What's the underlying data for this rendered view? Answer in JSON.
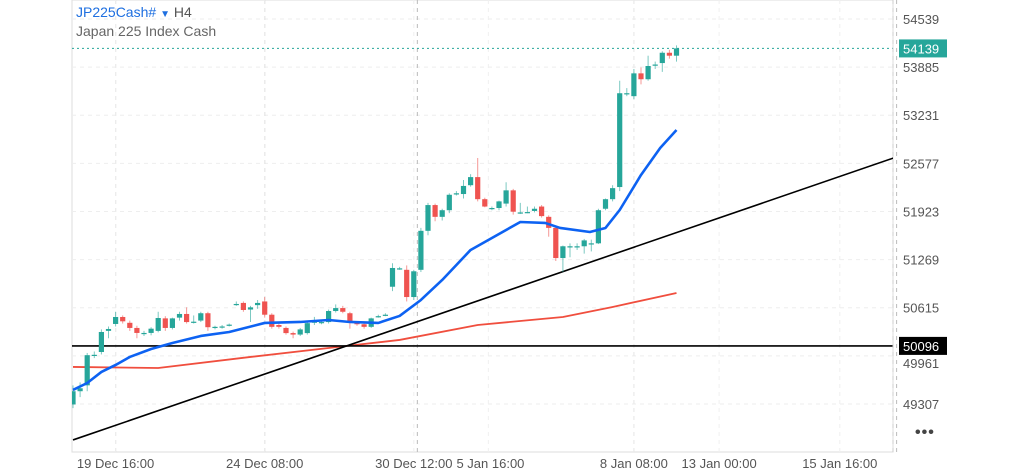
{
  "header": {
    "symbol": "JP225Cash#",
    "dropdown_icon": "caret-down-icon",
    "timeframe": "H4",
    "description": "Japan 225 Index Cash"
  },
  "more_button": "•••",
  "colors": {
    "up": "#26a69a",
    "down": "#ef5350",
    "ma_fast": "#0d62f2",
    "ma_slow": "#f04e3e",
    "trendline": "#000000",
    "last_price": "#26a69a"
  },
  "chart_data": {
    "type": "candlestick",
    "title": "",
    "ylim": [
      48654,
      54797
    ],
    "y_ticks": [
      54539,
      53885,
      53231,
      52577,
      51923,
      51269,
      50615,
      49961,
      49307
    ],
    "x_tick_labels": [
      {
        "label": "19 Dec 16:00",
        "index": 6
      },
      {
        "label": "24 Dec 08:00",
        "index": 27
      },
      {
        "label": "30 Dec 12:00",
        "index": 48
      },
      {
        "label": "5 Jan 16:00",
        "index": 58.5
      },
      {
        "label": "8 Jan 08:00",
        "index": 79
      },
      {
        "label": "13 Jan 00:00",
        "index": 91
      },
      {
        "label": "15 Jan 16:00",
        "index": 108
      }
    ],
    "major_gridlines_at_index": [
      6,
      27,
      48.5,
      79,
      116
    ],
    "candles_ohlc": [
      [
        49300,
        49560,
        49250,
        49480
      ],
      [
        49480,
        49600,
        49400,
        49520
      ],
      [
        49560,
        50000,
        49480,
        49970
      ],
      [
        49970,
        50020,
        49930,
        49975
      ],
      [
        50013,
        50320,
        49980,
        50285
      ],
      [
        50300,
        50360,
        50200,
        50326
      ],
      [
        50394,
        50560,
        50360,
        50489
      ],
      [
        50489,
        50510,
        50400,
        50430
      ],
      [
        50410,
        50440,
        50300,
        50340
      ],
      [
        50340,
        50370,
        50200,
        50272
      ],
      [
        50270,
        50300,
        50230,
        50272
      ],
      [
        50272,
        50350,
        50240,
        50330
      ],
      [
        50300,
        50560,
        50280,
        50475
      ],
      [
        50470,
        50500,
        50300,
        50340
      ],
      [
        50340,
        50480,
        50320,
        50470
      ],
      [
        50480,
        50560,
        50440,
        50530
      ],
      [
        50530,
        50620,
        50400,
        50420
      ],
      [
        50420,
        50510,
        50400,
        50425
      ],
      [
        50440,
        50560,
        50420,
        50540
      ],
      [
        50540,
        50560,
        50300,
        50350
      ],
      [
        50355,
        50370,
        50320,
        50355
      ],
      [
        50360,
        50380,
        50330,
        50360
      ],
      [
        50380,
        50400,
        50360,
        50385
      ],
      [
        50660,
        50700,
        50640,
        50666
      ],
      [
        50680,
        50700,
        50560,
        50584
      ],
      [
        50590,
        50640,
        50420,
        50620
      ],
      [
        50650,
        50720,
        50600,
        50680
      ],
      [
        50700,
        50760,
        50480,
        50520
      ],
      [
        50520,
        50540,
        50330,
        50355
      ],
      [
        50380,
        50400,
        50330,
        50355
      ],
      [
        50340,
        50360,
        50250,
        50270
      ],
      [
        50270,
        50290,
        50200,
        50250
      ],
      [
        50250,
        50340,
        50230,
        50320
      ],
      [
        50270,
        50430,
        50250,
        50405
      ],
      [
        50410,
        50490,
        50380,
        50430
      ],
      [
        50420,
        50440,
        50390,
        50420
      ],
      [
        50420,
        50590,
        50400,
        50570
      ],
      [
        50570,
        50660,
        50550,
        50610
      ],
      [
        50610,
        50640,
        50540,
        50560
      ],
      [
        50540,
        50560,
        50330,
        50410
      ],
      [
        50410,
        50420,
        50370,
        50390
      ],
      [
        50390,
        50410,
        50330,
        50355
      ],
      [
        50355,
        50480,
        50340,
        50470
      ],
      [
        50500,
        50520,
        50480,
        50500
      ],
      [
        50520,
        50540,
        50500,
        50520
      ],
      [
        50900,
        51220,
        50840,
        51155
      ],
      [
        51150,
        51170,
        51130,
        51150
      ],
      [
        51130,
        51190,
        50700,
        50760
      ],
      [
        50760,
        51130,
        50720,
        51110
      ],
      [
        51130,
        51700,
        51100,
        51660
      ],
      [
        51660,
        52040,
        51600,
        52010
      ],
      [
        52010,
        52030,
        51790,
        51850
      ],
      [
        51850,
        51960,
        51800,
        51940
      ],
      [
        51940,
        52170,
        51900,
        52150
      ],
      [
        52170,
        52200,
        52140,
        52170
      ],
      [
        52160,
        52350,
        52100,
        52270
      ],
      [
        52280,
        52430,
        52260,
        52390
      ],
      [
        52390,
        52650,
        52060,
        52090
      ],
      [
        52090,
        52110,
        51980,
        51990
      ],
      [
        51970,
        51990,
        51940,
        51970
      ],
      [
        51970,
        52070,
        51940,
        52060
      ],
      [
        52030,
        52320,
        51990,
        52210
      ],
      [
        52210,
        52230,
        51880,
        51920
      ],
      [
        51910,
        52040,
        51890,
        51910
      ],
      [
        51915,
        51990,
        51900,
        51915
      ],
      [
        51930,
        51990,
        51910,
        51960
      ],
      [
        51990,
        52010,
        51840,
        51860
      ],
      [
        51850,
        51870,
        51580,
        51700
      ],
      [
        51700,
        51720,
        51250,
        51290
      ],
      [
        51290,
        51460,
        51100,
        51450
      ],
      [
        51450,
        51490,
        51300,
        51450
      ],
      [
        51450,
        51490,
        51400,
        51450
      ],
      [
        51450,
        51550,
        51350,
        51530
      ],
      [
        51490,
        51540,
        51380,
        51490
      ],
      [
        51490,
        51960,
        51480,
        51940
      ],
      [
        51960,
        52100,
        51940,
        52090
      ],
      [
        52090,
        52280,
        52060,
        52240
      ],
      [
        52255,
        53700,
        52200,
        53530
      ],
      [
        53530,
        53600,
        53490,
        53530
      ],
      [
        53490,
        53860,
        53450,
        53800
      ],
      [
        53800,
        53880,
        53650,
        53720
      ],
      [
        53720,
        54040,
        53700,
        53900
      ],
      [
        53920,
        53960,
        53860,
        53920
      ],
      [
        53940,
        54100,
        53820,
        54080
      ],
      [
        54080,
        54120,
        54000,
        54040
      ],
      [
        54040,
        54180,
        53960,
        54139
      ]
    ],
    "ma_fast_points": [
      [
        0,
        49497
      ],
      [
        2,
        49592
      ],
      [
        4,
        49742
      ],
      [
        6,
        49837
      ],
      [
        8,
        49946
      ],
      [
        11,
        50054
      ],
      [
        14,
        50136
      ],
      [
        18,
        50231
      ],
      [
        22,
        50285
      ],
      [
        27,
        50408
      ],
      [
        32,
        50421
      ],
      [
        36,
        50448
      ],
      [
        39,
        50421
      ],
      [
        43,
        50408
      ],
      [
        46,
        50503
      ],
      [
        49,
        50720
      ],
      [
        52,
        50992
      ],
      [
        56,
        51400
      ],
      [
        59,
        51563
      ],
      [
        63,
        51780
      ],
      [
        66.5,
        51767
      ],
      [
        68.6,
        51699
      ],
      [
        72.8,
        51644
      ],
      [
        75,
        51699
      ],
      [
        77,
        51943
      ],
      [
        80,
        52419
      ],
      [
        82.7,
        52786
      ],
      [
        85,
        53030
      ]
    ],
    "ma_slow_points": [
      [
        0,
        49810
      ],
      [
        12,
        49796
      ],
      [
        25,
        49946
      ],
      [
        36,
        50068
      ],
      [
        46,
        50177
      ],
      [
        57,
        50380
      ],
      [
        69,
        50489
      ],
      [
        76,
        50625
      ],
      [
        85,
        50815
      ]
    ],
    "trendline": [
      [
        0,
        48818
      ],
      [
        116,
        52664
      ]
    ],
    "horizontal_line": 50096,
    "last_price": 54139
  }
}
